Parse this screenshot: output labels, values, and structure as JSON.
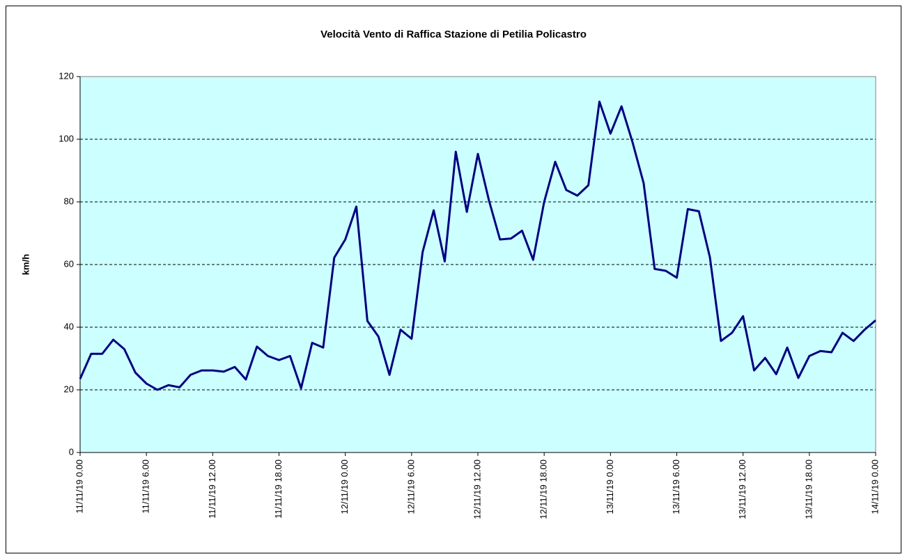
{
  "chart_data": {
    "type": "line",
    "title": "Velocità Vento di Raffica Stazione di Petilia Policastro",
    "y_label": "km/h",
    "categories": [
      "11/11/19 0.00",
      null,
      null,
      null,
      null,
      null,
      "11/11/19 6.00",
      null,
      null,
      null,
      null,
      null,
      "11/11/19 12.00",
      null,
      null,
      null,
      null,
      null,
      "11/11/19 18.00",
      null,
      null,
      null,
      null,
      null,
      "12/11/19 0.00",
      null,
      null,
      null,
      null,
      null,
      "12/11/19 6.00",
      null,
      null,
      null,
      null,
      null,
      "12/11/19 12.00",
      null,
      null,
      null,
      null,
      null,
      "12/11/19 18.00",
      null,
      null,
      null,
      null,
      null,
      "13/11/19 0.00",
      null,
      null,
      null,
      null,
      null,
      "13/11/19 6.00",
      null,
      null,
      null,
      null,
      null,
      "13/11/19 12.00",
      null,
      null,
      null,
      null,
      null,
      "13/11/19 18.00",
      null,
      null,
      null,
      null,
      null,
      "14/11/19 0.00"
    ],
    "series": [
      {
        "name": null,
        "color": "#000080",
        "values": [
          23.5,
          31.5,
          31.5,
          36,
          33,
          25.5,
          22,
          20,
          21.5,
          20.8,
          24.8,
          26.2,
          26.2,
          25.8,
          27.3,
          23.3,
          33.8,
          30.8,
          29.5,
          30.8,
          20.5,
          35,
          33.5,
          62.2,
          68,
          78.5,
          42,
          37,
          24.8,
          39.2,
          36.3,
          64,
          77.3,
          61,
          96,
          76.8,
          95.3,
          80.5,
          68,
          68.3,
          70.8,
          61.5,
          80,
          92.8,
          83.8,
          82,
          85.3,
          112,
          101.8,
          110.5,
          99,
          86,
          58.6,
          58,
          55.8,
          77.7,
          77,
          62.3,
          35.6,
          38.2,
          43.5,
          26.2,
          30.2,
          25,
          33.5,
          23.8,
          30.8,
          32.4,
          32,
          38.2,
          35.6,
          39.2,
          42.2
        ]
      }
    ],
    "ylim": [
      0,
      120
    ],
    "yticks": [
      0,
      20,
      40,
      60,
      80,
      100,
      120
    ],
    "grid": true,
    "plot_background": "#ccffff"
  }
}
